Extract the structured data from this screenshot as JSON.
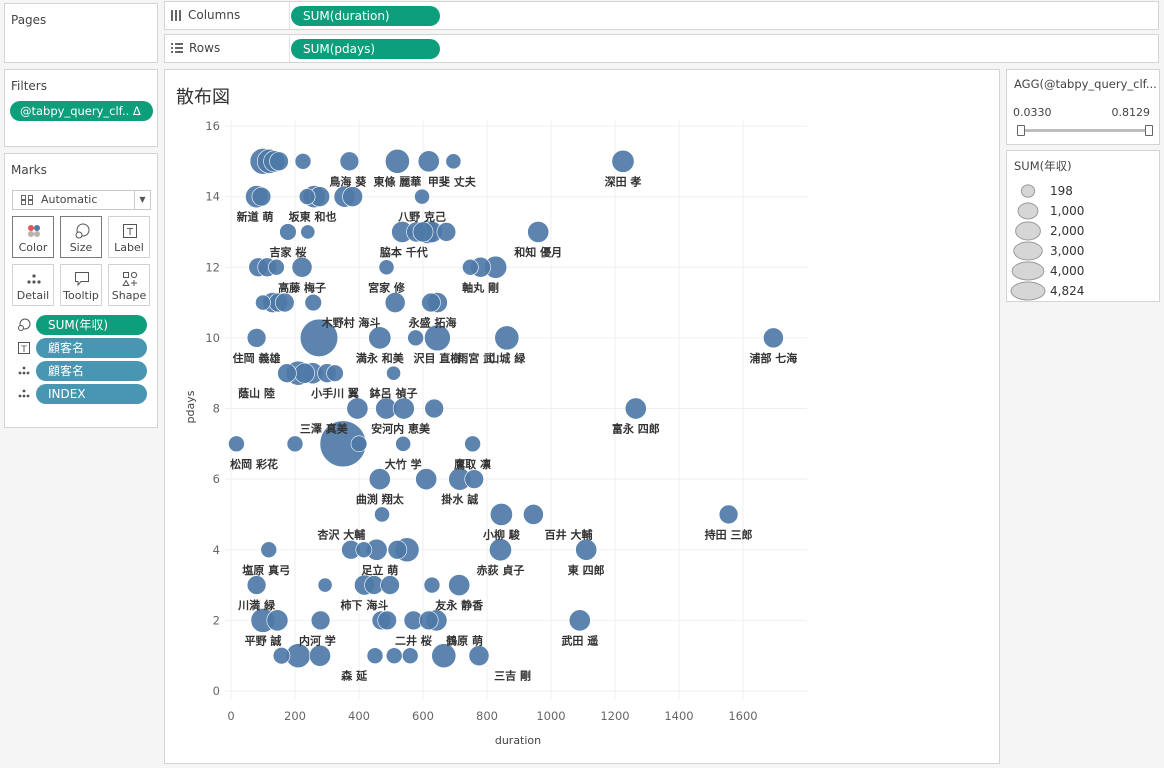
{
  "pages": {
    "title": "Pages"
  },
  "shelves": {
    "columns": {
      "label": "Columns",
      "pill": "SUM(duration)"
    },
    "rows": {
      "label": "Rows",
      "pill": "SUM(pdays)"
    }
  },
  "filters": {
    "title": "Filters",
    "pill": "@tabpy_query_clf.. Δ"
  },
  "marks": {
    "title": "Marks",
    "type": "Automatic",
    "buttons": {
      "color": "Color",
      "size": "Size",
      "label": "Label",
      "detail": "Detail",
      "tooltip": "Tooltip",
      "shape": "Shape"
    },
    "fields": {
      "size": "SUM(年収)",
      "label": "顧客名",
      "detail1": "顧客名",
      "detail2": "INDEX"
    }
  },
  "filter_card": {
    "title": "AGG(@tabpy_query_clf...",
    "min": "0.0330",
    "max": "0.8129",
    "low": 0.033,
    "high": 0.8129
  },
  "size_legend": {
    "title": "SUM(年収)",
    "items": [
      {
        "label": "198",
        "value": 198
      },
      {
        "label": "1,000",
        "value": 1000
      },
      {
        "label": "2,000",
        "value": 2000
      },
      {
        "label": "3,000",
        "value": 3000
      },
      {
        "label": "4,000",
        "value": 4000
      },
      {
        "label": "4,824",
        "value": 4824
      }
    ]
  },
  "colors": {
    "mark": "#4e79a7",
    "accent": "#0d9f7c",
    "pill_blue": "#4996b2"
  },
  "chart_data": {
    "type": "scatter",
    "title": "散布図",
    "xlabel": "duration",
    "ylabel": "pdays",
    "xlim": [
      0,
      1800
    ],
    "ylim": [
      0,
      16
    ],
    "xticks": [
      0,
      200,
      400,
      600,
      800,
      1000,
      1200,
      1400,
      1600
    ],
    "yticks": [
      0,
      2,
      4,
      6,
      8,
      10,
      12,
      14,
      16
    ],
    "grid": true,
    "points": [
      {
        "x": 100,
        "y": 15,
        "s": 1200
      },
      {
        "x": 120,
        "y": 15,
        "s": 1000
      },
      {
        "x": 135,
        "y": 15,
        "s": 700
      },
      {
        "x": 150,
        "y": 15,
        "s": 500
      },
      {
        "x": 225,
        "y": 15,
        "s": 300
      },
      {
        "x": 370,
        "y": 15,
        "s": 500
      },
      {
        "x": 520,
        "y": 15,
        "s": 1000
      },
      {
        "x": 618,
        "y": 15,
        "s": 700
      },
      {
        "x": 695,
        "y": 15,
        "s": 250
      },
      {
        "x": 1225,
        "y": 15,
        "s": 800
      },
      {
        "x": 80,
        "y": 14,
        "s": 800
      },
      {
        "x": 95,
        "y": 14,
        "s": 500
      },
      {
        "x": 238,
        "y": 14,
        "s": 300
      },
      {
        "x": 260,
        "y": 14,
        "s": 800
      },
      {
        "x": 277,
        "y": 14,
        "s": 600
      },
      {
        "x": 355,
        "y": 14,
        "s": 700
      },
      {
        "x": 380,
        "y": 14,
        "s": 600
      },
      {
        "x": 597,
        "y": 14,
        "s": 250
      },
      {
        "x": 178,
        "y": 13,
        "s": 350
      },
      {
        "x": 240,
        "y": 13,
        "s": 200
      },
      {
        "x": 535,
        "y": 13,
        "s": 700
      },
      {
        "x": 580,
        "y": 13,
        "s": 600
      },
      {
        "x": 600,
        "y": 13,
        "s": 600
      },
      {
        "x": 615,
        "y": 13,
        "s": 900
      },
      {
        "x": 628,
        "y": 13,
        "s": 700
      },
      {
        "x": 673,
        "y": 13,
        "s": 500
      },
      {
        "x": 960,
        "y": 13,
        "s": 700
      },
      {
        "x": 85,
        "y": 12,
        "s": 500
      },
      {
        "x": 113,
        "y": 12,
        "s": 500
      },
      {
        "x": 142,
        "y": 12,
        "s": 300
      },
      {
        "x": 222,
        "y": 12,
        "s": 600
      },
      {
        "x": 486,
        "y": 12,
        "s": 250
      },
      {
        "x": 748,
        "y": 12,
        "s": 300
      },
      {
        "x": 780,
        "y": 12,
        "s": 600
      },
      {
        "x": 827,
        "y": 12,
        "s": 800
      },
      {
        "x": 100,
        "y": 11,
        "s": 250
      },
      {
        "x": 130,
        "y": 11,
        "s": 600
      },
      {
        "x": 148,
        "y": 11,
        "s": 500
      },
      {
        "x": 168,
        "y": 11,
        "s": 500
      },
      {
        "x": 257,
        "y": 11,
        "s": 350
      },
      {
        "x": 513,
        "y": 11,
        "s": 600
      },
      {
        "x": 625,
        "y": 11,
        "s": 500
      },
      {
        "x": 645,
        "y": 11,
        "s": 600
      },
      {
        "x": 80,
        "y": 10,
        "s": 500
      },
      {
        "x": 275,
        "y": 10,
        "s": 3000
      },
      {
        "x": 465,
        "y": 10,
        "s": 800
      },
      {
        "x": 577,
        "y": 10,
        "s": 300
      },
      {
        "x": 645,
        "y": 10,
        "s": 1200
      },
      {
        "x": 862,
        "y": 10,
        "s": 1000
      },
      {
        "x": 1695,
        "y": 10,
        "s": 600
      },
      {
        "x": 175,
        "y": 9,
        "s": 500
      },
      {
        "x": 210,
        "y": 9,
        "s": 1000
      },
      {
        "x": 230,
        "y": 9,
        "s": 600
      },
      {
        "x": 255,
        "y": 9,
        "s": 700
      },
      {
        "x": 300,
        "y": 9,
        "s": 500
      },
      {
        "x": 325,
        "y": 9,
        "s": 350
      },
      {
        "x": 508,
        "y": 9,
        "s": 200
      },
      {
        "x": 395,
        "y": 8,
        "s": 700
      },
      {
        "x": 485,
        "y": 8,
        "s": 700
      },
      {
        "x": 540,
        "y": 8,
        "s": 700
      },
      {
        "x": 635,
        "y": 8,
        "s": 500
      },
      {
        "x": 1265,
        "y": 8,
        "s": 700
      },
      {
        "x": 17,
        "y": 7,
        "s": 300
      },
      {
        "x": 200,
        "y": 7,
        "s": 300
      },
      {
        "x": 350,
        "y": 7,
        "s": 4824
      },
      {
        "x": 400,
        "y": 7,
        "s": 300
      },
      {
        "x": 538,
        "y": 7,
        "s": 250
      },
      {
        "x": 755,
        "y": 7,
        "s": 300
      },
      {
        "x": 465,
        "y": 6,
        "s": 700
      },
      {
        "x": 610,
        "y": 6,
        "s": 700
      },
      {
        "x": 715,
        "y": 6,
        "s": 800
      },
      {
        "x": 760,
        "y": 6,
        "s": 500
      },
      {
        "x": 472,
        "y": 5,
        "s": 250
      },
      {
        "x": 845,
        "y": 5,
        "s": 800
      },
      {
        "x": 945,
        "y": 5,
        "s": 600
      },
      {
        "x": 1555,
        "y": 5,
        "s": 500
      },
      {
        "x": 118,
        "y": 4,
        "s": 300
      },
      {
        "x": 375,
        "y": 4,
        "s": 500
      },
      {
        "x": 415,
        "y": 4,
        "s": 300
      },
      {
        "x": 455,
        "y": 4,
        "s": 700
      },
      {
        "x": 520,
        "y": 4,
        "s": 500
      },
      {
        "x": 550,
        "y": 4,
        "s": 1000
      },
      {
        "x": 842,
        "y": 4,
        "s": 800
      },
      {
        "x": 1110,
        "y": 4,
        "s": 700
      },
      {
        "x": 80,
        "y": 3,
        "s": 500
      },
      {
        "x": 294,
        "y": 3,
        "s": 200
      },
      {
        "x": 417,
        "y": 3,
        "s": 600
      },
      {
        "x": 447,
        "y": 3,
        "s": 500
      },
      {
        "x": 497,
        "y": 3,
        "s": 500
      },
      {
        "x": 628,
        "y": 3,
        "s": 300
      },
      {
        "x": 713,
        "y": 3,
        "s": 700
      },
      {
        "x": 100,
        "y": 2,
        "s": 1000
      },
      {
        "x": 145,
        "y": 2,
        "s": 700
      },
      {
        "x": 280,
        "y": 2,
        "s": 500
      },
      {
        "x": 470,
        "y": 2,
        "s": 500
      },
      {
        "x": 488,
        "y": 2,
        "s": 500
      },
      {
        "x": 570,
        "y": 2,
        "s": 500
      },
      {
        "x": 618,
        "y": 2,
        "s": 500
      },
      {
        "x": 642,
        "y": 2,
        "s": 700
      },
      {
        "x": 1090,
        "y": 2,
        "s": 700
      },
      {
        "x": 158,
        "y": 1,
        "s": 350
      },
      {
        "x": 210,
        "y": 1,
        "s": 1000
      },
      {
        "x": 278,
        "y": 1,
        "s": 700
      },
      {
        "x": 450,
        "y": 1,
        "s": 300
      },
      {
        "x": 510,
        "y": 1,
        "s": 300
      },
      {
        "x": 560,
        "y": 1,
        "s": 300
      },
      {
        "x": 665,
        "y": 1,
        "s": 1000
      },
      {
        "x": 775,
        "y": 1,
        "s": 600
      }
    ],
    "labels": [
      {
        "text": "鳥海 葵",
        "x": 365,
        "y": 15
      },
      {
        "text": "東條 麗華",
        "x": 520,
        "y": 15
      },
      {
        "text": "甲斐 丈夫",
        "x": 690,
        "y": 15
      },
      {
        "text": "深田 孝",
        "x": 1225,
        "y": 15
      },
      {
        "text": "新道 萌",
        "x": 75,
        "y": 14
      },
      {
        "text": "坂東 和也",
        "x": 255,
        "y": 14
      },
      {
        "text": "八野 克己",
        "x": 597,
        "y": 14
      },
      {
        "text": "吉家 桜",
        "x": 178,
        "y": 13
      },
      {
        "text": "脇本 千代",
        "x": 540,
        "y": 13
      },
      {
        "text": "和知 優月",
        "x": 960,
        "y": 13
      },
      {
        "text": "高藤 梅子",
        "x": 222,
        "y": 12
      },
      {
        "text": "宮家 修",
        "x": 486,
        "y": 12
      },
      {
        "text": "軸丸 剛",
        "x": 780,
        "y": 12
      },
      {
        "text": "木野村 海斗",
        "x": 375,
        "y": 11
      },
      {
        "text": "永盛 拓海",
        "x": 630,
        "y": 11
      },
      {
        "text": "住岡 義雄",
        "x": 80,
        "y": 10
      },
      {
        "text": "満永 和美",
        "x": 465,
        "y": 10
      },
      {
        "text": "沢目 直樹",
        "x": 645,
        "y": 10
      },
      {
        "text": "雨宮 武",
        "x": 765,
        "y": 10
      },
      {
        "text": "山城 緑",
        "x": 862,
        "y": 10
      },
      {
        "text": "浦部 七海",
        "x": 1695,
        "y": 10
      },
      {
        "text": "蔭山 陸",
        "x": 80,
        "y": 9
      },
      {
        "text": "小手川 翼",
        "x": 325,
        "y": 9
      },
      {
        "text": "鉢呂 禎子",
        "x": 508,
        "y": 9
      },
      {
        "text": "三澤 真美",
        "x": 290,
        "y": 8
      },
      {
        "text": "安河内 恵美",
        "x": 530,
        "y": 8
      },
      {
        "text": "富永 四郎",
        "x": 1265,
        "y": 8
      },
      {
        "text": "松岡 彩花",
        "x": 72,
        "y": 7
      },
      {
        "text": "大竹 学",
        "x": 538,
        "y": 7
      },
      {
        "text": "鷹取 凛",
        "x": 755,
        "y": 7
      },
      {
        "text": "曲渕 翔太",
        "x": 465,
        "y": 6
      },
      {
        "text": "掛水 誠",
        "x": 715,
        "y": 6
      },
      {
        "text": "百井 大輔",
        "x": 1055,
        "y": 5
      },
      {
        "text": "小柳 駿",
        "x": 845,
        "y": 5
      },
      {
        "text": "持田 三郎",
        "x": 1555,
        "y": 5
      },
      {
        "text": "杏沢 大輔",
        "x": 345,
        "y": 5
      },
      {
        "text": "塩原 真弓",
        "x": 110,
        "y": 4
      },
      {
        "text": "足立 萌",
        "x": 465,
        "y": 4
      },
      {
        "text": "赤荻 貞子",
        "x": 842,
        "y": 4
      },
      {
        "text": "東 四郎",
        "x": 1110,
        "y": 4
      },
      {
        "text": "川満 緑",
        "x": 80,
        "y": 3
      },
      {
        "text": "柿下 海斗",
        "x": 417,
        "y": 3
      },
      {
        "text": "友永 静香",
        "x": 713,
        "y": 3
      },
      {
        "text": "平野 誠",
        "x": 100,
        "y": 2
      },
      {
        "text": "内河 学",
        "x": 270,
        "y": 2
      },
      {
        "text": "二井 桜",
        "x": 570,
        "y": 2
      },
      {
        "text": "鶴原 萌",
        "x": 730,
        "y": 2
      },
      {
        "text": "武田 遥",
        "x": 1090,
        "y": 2
      },
      {
        "text": "森 延",
        "x": 385,
        "y": 1
      },
      {
        "text": "三吉 剛",
        "x": 880,
        "y": 1
      }
    ]
  }
}
